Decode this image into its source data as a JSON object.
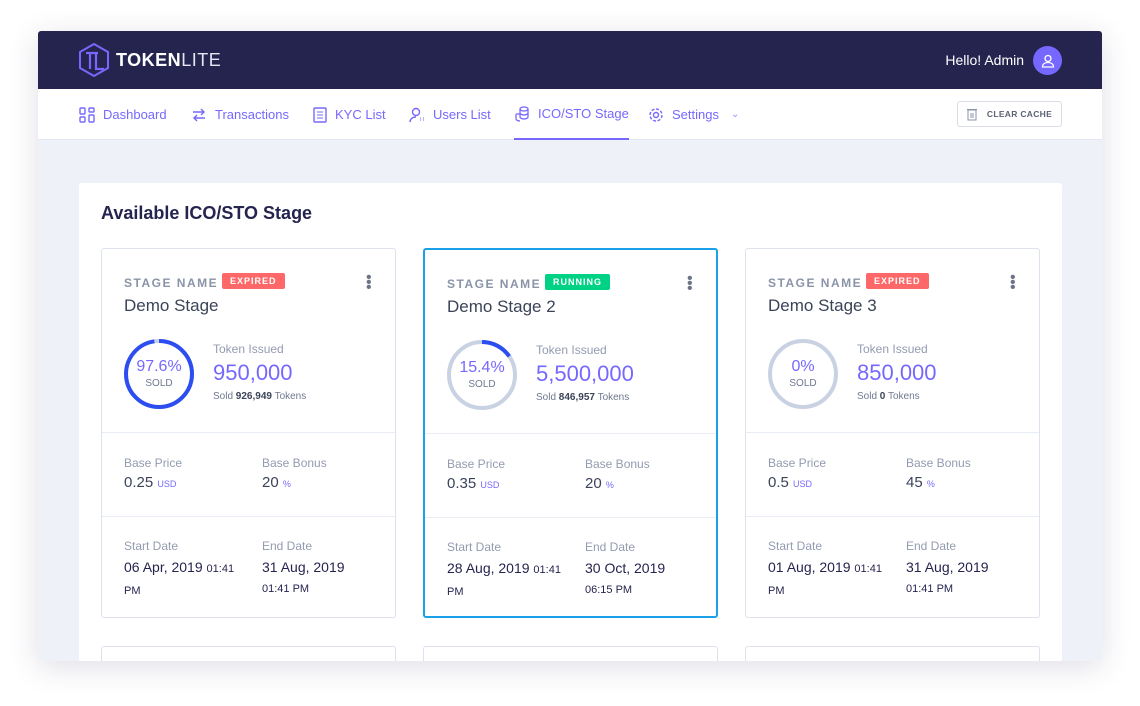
{
  "brand": {
    "name_bold": "TOKEN",
    "name_light": "LITE"
  },
  "header": {
    "greeting": "Hello! Admin",
    "avatar_icon": "user-icon"
  },
  "nav": {
    "items": [
      {
        "label": "Dashboard",
        "icon": "grid-icon"
      },
      {
        "label": "Transactions",
        "icon": "arrows-icon"
      },
      {
        "label": "KYC List",
        "icon": "document-icon"
      },
      {
        "label": "Users List",
        "icon": "users-icon"
      },
      {
        "label": "ICO/STO Stage",
        "icon": "coins-icon",
        "active": true
      },
      {
        "label": "Settings",
        "icon": "gear-icon"
      }
    ],
    "clear_cache": "CLEAR CACHE"
  },
  "page": {
    "title": "Available ICO/STO Stage"
  },
  "colors": {
    "accent": "#7668fe",
    "header": "#25244f",
    "expired": "#ff6868",
    "running": "#00d285",
    "ring_fill": "#2c4ef0",
    "ring_track": "#c9d2e3",
    "selected_border": "#1ba1e8"
  },
  "stages": [
    {
      "stage_label": "STAGE NAME",
      "status": "EXPIRED",
      "name": "Demo Stage",
      "percent_sold": 97.6,
      "percent_text": "97.6%",
      "sold_label": "SOLD",
      "token_issued_label": "Token Issued",
      "token_issued": "950,000",
      "sold_prefix": "Sold",
      "sold_tokens": "926,949",
      "sold_suffix": "Tokens",
      "base_price_label": "Base Price",
      "base_price": "0.25",
      "price_unit": "USD",
      "base_bonus_label": "Base Bonus",
      "base_bonus": "20",
      "bonus_unit": "%",
      "start_label": "Start Date",
      "start_date": "06 Apr, 2019",
      "start_time": "01:41 PM",
      "end_label": "End Date",
      "end_date": "31 Aug, 2019",
      "end_time": "01:41 PM"
    },
    {
      "stage_label": "STAGE NAME",
      "status": "RUNNING",
      "name": "Demo Stage 2",
      "percent_sold": 15.4,
      "percent_text": "15.4%",
      "sold_label": "SOLD",
      "token_issued_label": "Token Issued",
      "token_issued": "5,500,000",
      "sold_prefix": "Sold",
      "sold_tokens": "846,957",
      "sold_suffix": "Tokens",
      "base_price_label": "Base Price",
      "base_price": "0.35",
      "price_unit": "USD",
      "base_bonus_label": "Base Bonus",
      "base_bonus": "20",
      "bonus_unit": "%",
      "start_label": "Start Date",
      "start_date": "28 Aug, 2019",
      "start_time": "01:41 PM",
      "end_label": "End Date",
      "end_date": "30 Oct, 2019",
      "end_time": "06:15 PM"
    },
    {
      "stage_label": "STAGE NAME",
      "status": "EXPIRED",
      "name": "Demo Stage 3",
      "percent_sold": 0,
      "percent_text": "0%",
      "sold_label": "SOLD",
      "token_issued_label": "Token Issued",
      "token_issued": "850,000",
      "sold_prefix": "Sold",
      "sold_tokens": "0",
      "sold_suffix": "Tokens",
      "base_price_label": "Base Price",
      "base_price": "0.5",
      "price_unit": "USD",
      "base_bonus_label": "Base Bonus",
      "base_bonus": "45",
      "bonus_unit": "%",
      "start_label": "Start Date",
      "start_date": "01 Aug, 2019",
      "start_time": "01:41 PM",
      "end_label": "End Date",
      "end_date": "31 Aug, 2019",
      "end_time": "01:41 PM"
    }
  ]
}
